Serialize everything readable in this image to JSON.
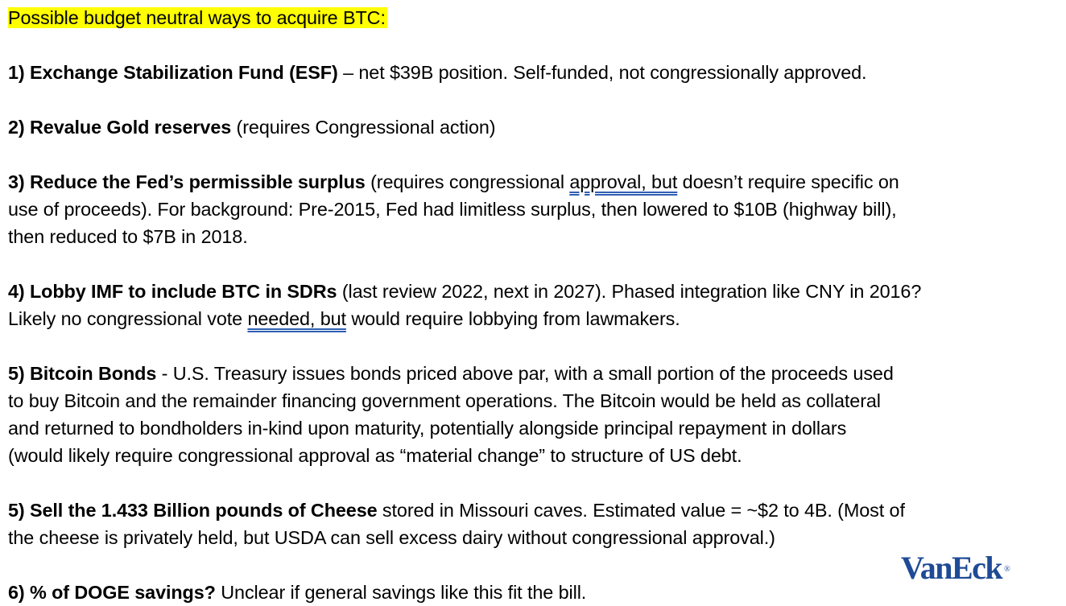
{
  "title": "Possible budget neutral ways to acquire BTC:",
  "items": [
    {
      "lines": [
        [
          {
            "b": "1) Exchange Stabilization Fund (ESF)"
          },
          {
            "t": " – net $39B position. Self-funded, not congressionally approved."
          }
        ]
      ]
    },
    {
      "lines": [
        [
          {
            "b": "2) Revalue Gold reserves"
          },
          {
            "t": " (requires Congressional action)"
          }
        ]
      ]
    },
    {
      "lines": [
        [
          {
            "b": "3) Reduce the Fed’s permissible surplus"
          },
          {
            "t": " (requires congressional "
          },
          {
            "u": "approval, but"
          },
          {
            "t": " doesn’t require specific on"
          }
        ],
        [
          {
            "t": "use of proceeds). For background: Pre-2015, Fed had limitless surplus, then lowered to $10B (highway bill),"
          }
        ],
        [
          {
            "t": "then reduced to $7B in 2018."
          }
        ]
      ]
    },
    {
      "lines": [
        [
          {
            "b": "4) Lobby IMF to include BTC in SDRs"
          },
          {
            "t": " (last review 2022, next in 2027). Phased integration like CNY in 2016?"
          }
        ],
        [
          {
            "t": "Likely no congressional vote "
          },
          {
            "u": "needed, but"
          },
          {
            "t": " would require lobbying from lawmakers."
          }
        ]
      ]
    },
    {
      "lines": [
        [
          {
            "b": "5) Bitcoin Bonds"
          },
          {
            "t": " - U.S. Treasury issues bonds priced above par, with a small portion of the proceeds used"
          }
        ],
        [
          {
            "t": "to buy Bitcoin and the remainder financing government operations. The Bitcoin would be held as collateral"
          }
        ],
        [
          {
            "t": "and returned to bondholders in-kind upon maturity, potentially alongside principal repayment in dollars"
          }
        ],
        [
          {
            "t": "(would likely require congressional approval as “material change” to structure of US debt."
          }
        ]
      ]
    },
    {
      "lines": [
        [
          {
            "b": "5) Sell the 1.433 Billion pounds of Cheese"
          },
          {
            "t": " stored in Missouri caves. Estimated value = ~$2 to 4B. (Most of"
          }
        ],
        [
          {
            "t": "the cheese is privately held, but USDA can sell excess dairy without congressional approval.)"
          }
        ]
      ]
    },
    {
      "lines": [
        [
          {
            "b": "6) % of DOGE savings?"
          },
          {
            "t": " Unclear if general savings like this fit the bill."
          }
        ]
      ]
    }
  ],
  "logo": {
    "text": "VanEck",
    "mark": "®",
    "color": "#1e4a96"
  },
  "colors": {
    "highlight": "#ffff00",
    "grammar_underline": "#2f5fb3"
  }
}
